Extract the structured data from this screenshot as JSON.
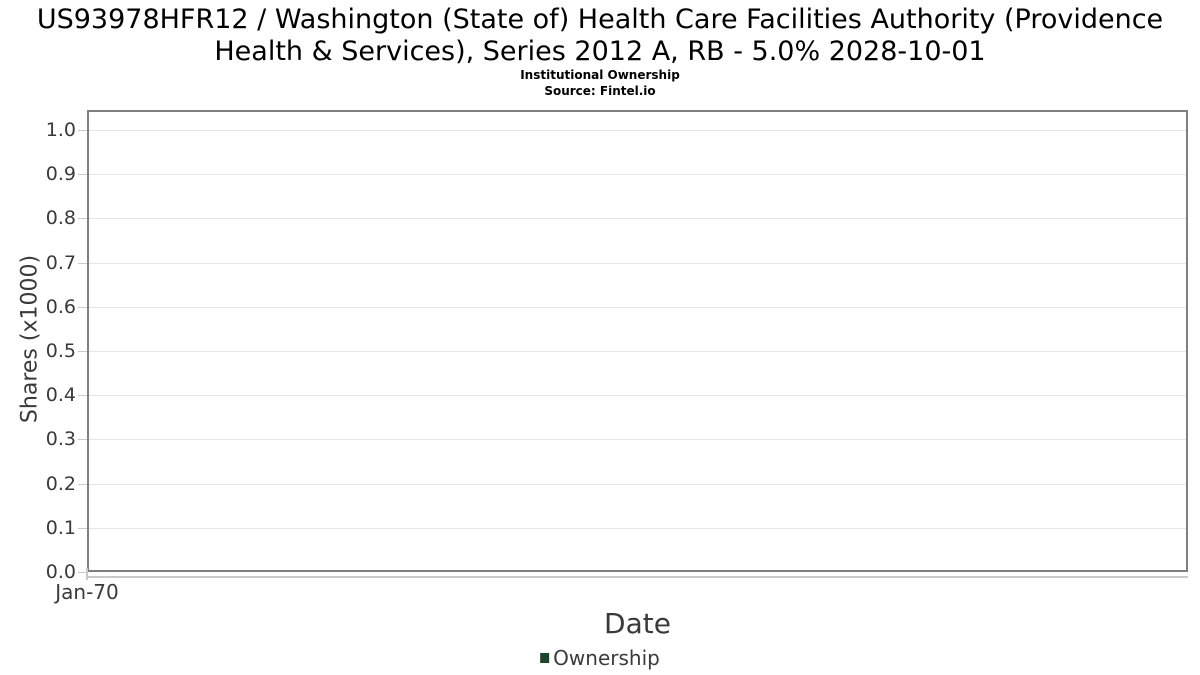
{
  "header": {
    "title": "US93978HFR12 / Washington (State of) Health Care Facilities Authority (Providence Health & Services), Series 2012 A, RB - 5.0% 2028-10-01",
    "title_lines": [
      "US93978HFR12 / Washington (State of) Health Care Facilities Authority (Providence",
      "Health & Services), Series 2012 A, RB - 5.0% 2028-10-01"
    ],
    "subtitle": "Institutional Ownership",
    "source": "Source: Fintel.io"
  },
  "chart_data": {
    "type": "line",
    "title": "US93978HFR12 / Washington (State of) Health Care Facilities Authority (Providence Health & Services), Series 2012 A, RB - 5.0% 2028-10-01",
    "subtitle": "Institutional Ownership",
    "source": "Source: Fintel.io",
    "xlabel": "Date",
    "ylabel": "Shares (x1000)",
    "x_tick_labels": [
      "Jan-70"
    ],
    "y_tick_labels": [
      "0.0",
      "0.1",
      "0.2",
      "0.3",
      "0.4",
      "0.5",
      "0.6",
      "0.7",
      "0.8",
      "0.9",
      "1.0"
    ],
    "ylim": [
      0.0,
      1.05
    ],
    "grid": true,
    "legend_position": "bottom",
    "series": [
      {
        "name": "Ownership",
        "color": "#1d472b",
        "x": [],
        "values": []
      }
    ]
  },
  "colors": {
    "title": "#000000",
    "axis_border": "#7f7f7f",
    "gridline": "#e6e6e6",
    "tick": "#c9c9c9",
    "axis_label": "#3a3a3a",
    "series": "#1d472b"
  }
}
